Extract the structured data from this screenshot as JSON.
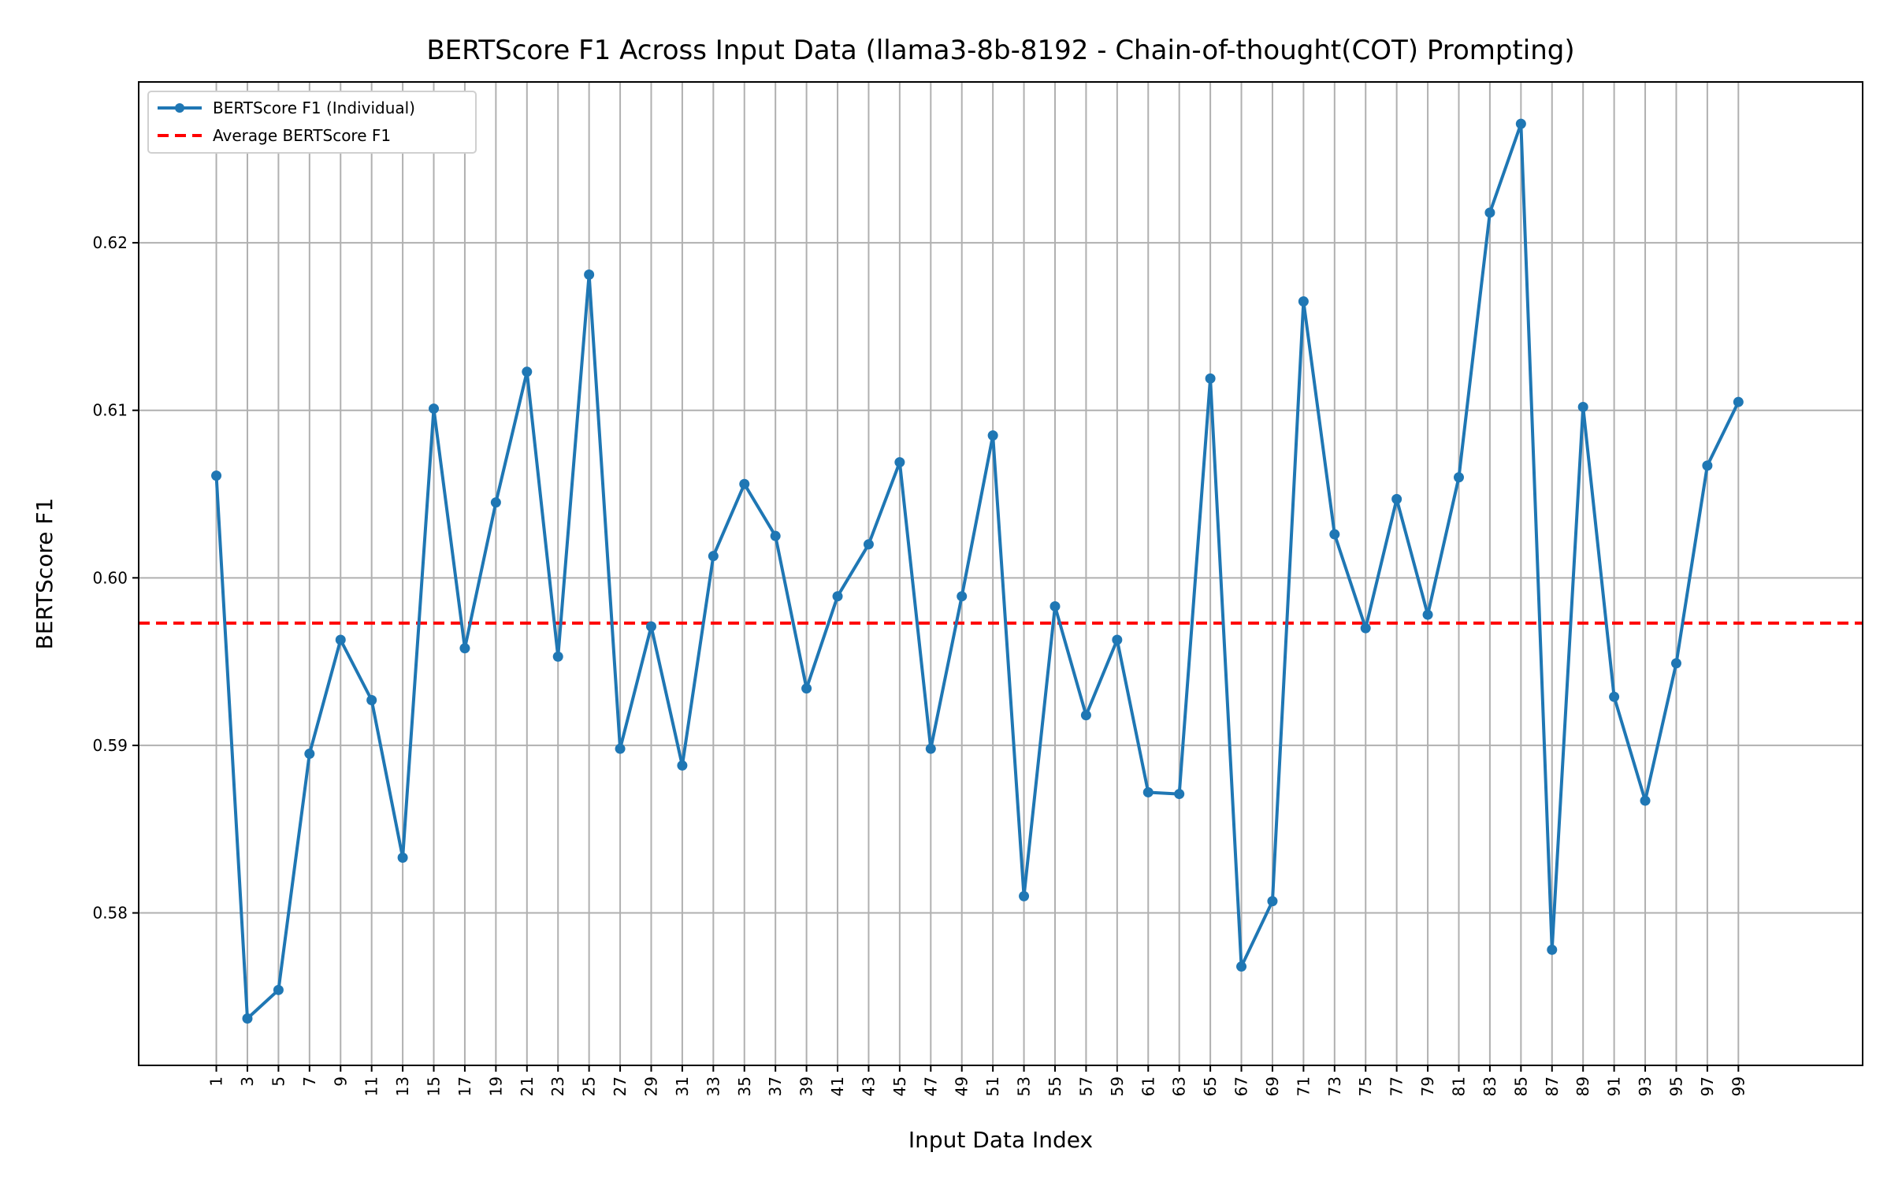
{
  "chart_data": {
    "type": "line",
    "title": "BERTScore F1 Across Input Data (llama3-8b-8192 - Chain-of-thought(COT) Prompting)",
    "xlabel": "Input Data Index",
    "ylabel": "BERTScore F1",
    "xlim": [
      -4,
      107
    ],
    "ylim": [
      0.5709,
      0.6296
    ],
    "x_ticks": [
      1,
      3,
      5,
      7,
      9,
      11,
      13,
      15,
      17,
      19,
      21,
      23,
      25,
      27,
      29,
      31,
      33,
      35,
      37,
      39,
      41,
      43,
      45,
      47,
      49,
      51,
      53,
      55,
      57,
      59,
      61,
      63,
      65,
      67,
      69,
      71,
      73,
      75,
      77,
      79,
      81,
      83,
      85,
      87,
      89,
      91,
      93,
      95,
      97,
      99
    ],
    "y_ticks": [
      0.58,
      0.59,
      0.6,
      0.61,
      0.62
    ],
    "y_tick_labels": [
      "0.58",
      "0.59",
      "0.60",
      "0.61",
      "0.62"
    ],
    "grid": true,
    "legend_position": "top-left",
    "series": [
      {
        "name": "BERTScore F1 (Individual)",
        "color": "#1f77b4",
        "style": "solid-with-markers",
        "x": [
          1,
          3,
          5,
          7,
          9,
          11,
          13,
          15,
          17,
          19,
          21,
          23,
          25,
          27,
          29,
          31,
          33,
          35,
          37,
          39,
          41,
          43,
          45,
          47,
          49,
          51,
          53,
          55,
          57,
          59,
          61,
          63,
          65,
          67,
          69,
          71,
          73,
          75,
          77,
          79,
          81,
          83,
          85,
          87,
          89,
          91,
          93,
          95,
          97,
          99
        ],
        "values": [
          0.6061,
          0.5737,
          0.5754,
          0.5895,
          0.5963,
          0.5927,
          0.5833,
          0.6101,
          0.5958,
          0.6045,
          0.6123,
          0.5953,
          0.6181,
          0.5898,
          0.5971,
          0.5888,
          0.6013,
          0.6056,
          0.6025,
          0.5934,
          0.5989,
          0.602,
          0.6069,
          0.5898,
          0.5989,
          0.6085,
          0.581,
          0.5983,
          0.5918,
          0.5963,
          0.5872,
          0.5871,
          0.6119,
          0.5768,
          0.5807,
          0.6165,
          0.6026,
          0.597,
          0.6047,
          0.5978,
          0.606,
          0.6218,
          0.6271,
          0.5778,
          0.6102,
          0.5929,
          0.5867,
          0.5949,
          0.6067,
          0.6105
        ]
      },
      {
        "name": "Average BERTScore F1",
        "color": "#ff0000",
        "style": "dashed",
        "value": 0.5973
      }
    ]
  }
}
